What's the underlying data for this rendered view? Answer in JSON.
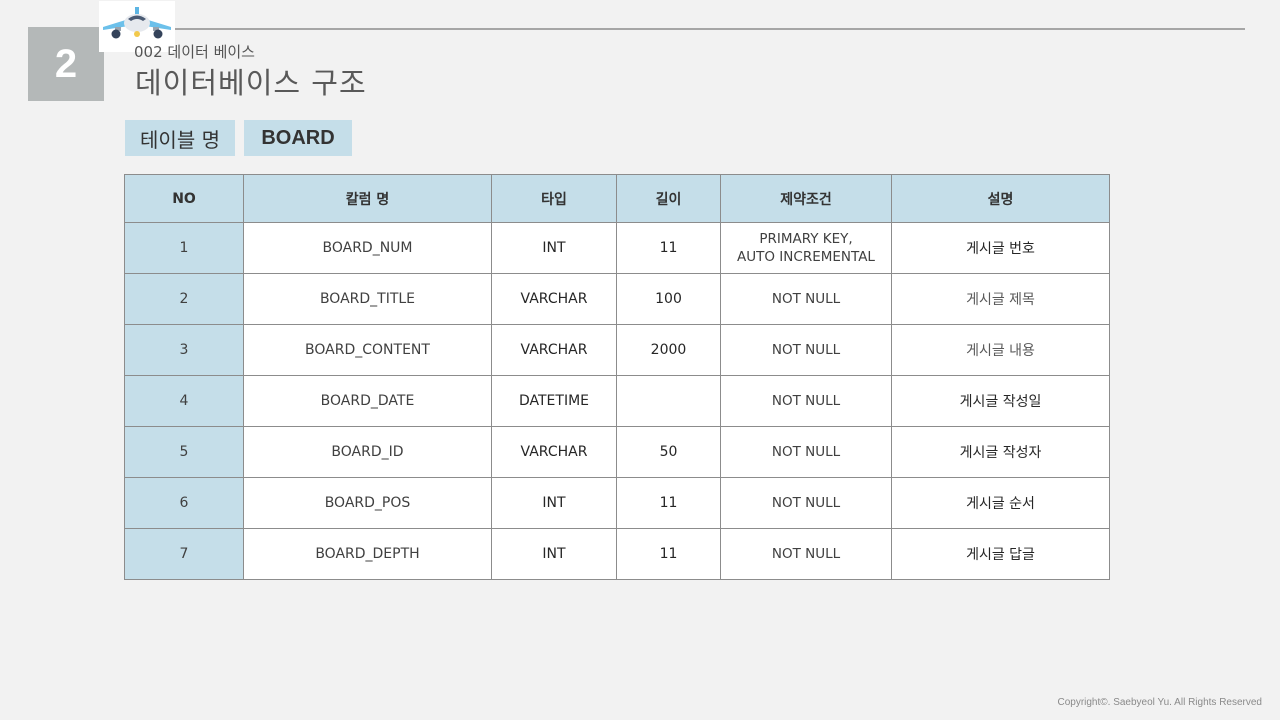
{
  "slide": {
    "number": "2",
    "subtitle": "002 데이터 베이스",
    "title": "데이터베이스 구조"
  },
  "table_name": {
    "label": "테이블 명",
    "value": "BOARD"
  },
  "table": {
    "columns": [
      "NO",
      "칼럼 명",
      "타입",
      "길이",
      "제약조건",
      "설명"
    ],
    "rows": [
      {
        "no": "1",
        "column": "BOARD_NUM",
        "type": "INT",
        "length": "11",
        "constraint": "PRIMARY KEY,\nAUTO INCREMENTAL",
        "description": "게시글 번호"
      },
      {
        "no": "2",
        "column": "BOARD_TITLE",
        "type": "VARCHAR",
        "length": "100",
        "constraint": "NOT NULL",
        "description": "게시글 제목"
      },
      {
        "no": "3",
        "column": "BOARD_CONTENT",
        "type": "VARCHAR",
        "length": "2000",
        "constraint": "NOT NULL",
        "description": "게시글 내용"
      },
      {
        "no": "4",
        "column": "BOARD_DATE",
        "type": "DATETIME",
        "length": "",
        "constraint": "NOT NULL",
        "description": "게시글 작성일"
      },
      {
        "no": "5",
        "column": "BOARD_ID",
        "type": "VARCHAR",
        "length": "50",
        "constraint": "NOT NULL",
        "description": "게시글 작성자"
      },
      {
        "no": "6",
        "column": "BOARD_POS",
        "type": "INT",
        "length": "11",
        "constraint": "NOT NULL",
        "description": "게시글 순서"
      },
      {
        "no": "7",
        "column": "BOARD_DEPTH",
        "type": "INT",
        "length": "11",
        "constraint": "NOT NULL",
        "description": "게시글 답글"
      }
    ]
  },
  "footer": {
    "copyright": "Copyright©. Saebyeol Yu. All Rights Reserved"
  },
  "icons": {
    "logo": "airplane-icon"
  },
  "colors": {
    "accent": "#c5dee9",
    "badge": "#b4b8b8",
    "background": "#f2f2f2"
  }
}
